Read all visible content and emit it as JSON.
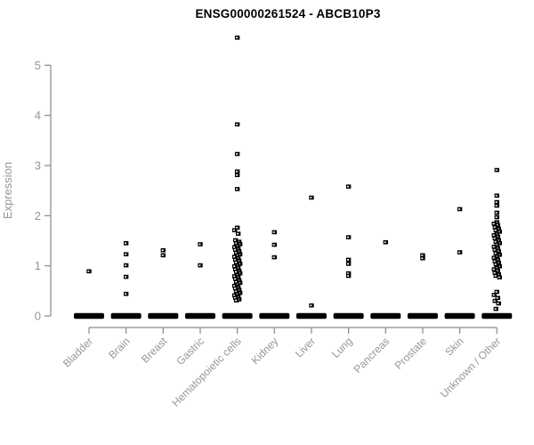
{
  "title": "ENSG00000261524 - ABCB10P3",
  "colors": {
    "background": "#ffffff",
    "title_text": "#000000",
    "axis_line": "#8a8a8a",
    "tick_text": "#969696",
    "point_fill": "#000000",
    "point_hole": "#ffffff"
  },
  "chart_data": {
    "type": "scatter",
    "subtype": "strip-plot",
    "title": "ENSG00000261524 - ABCB10P3",
    "xlabel": "",
    "ylabel": "Expression",
    "ylim": [
      0,
      5.6
    ],
    "yticks": [
      0,
      1,
      2,
      3,
      4,
      5
    ],
    "grid": false,
    "legend_position": "none",
    "categories": [
      "Bladder",
      "Brain",
      "Breast",
      "Gastric",
      "Hematopoietic cells",
      "Kidney",
      "Liver",
      "Lung",
      "Pancreas",
      "Prostate",
      "Skin",
      "Unknown / Other"
    ],
    "series": [
      {
        "category": "Bladder",
        "zero_cluster": true,
        "points": [
          0.89
        ]
      },
      {
        "category": "Brain",
        "zero_cluster": true,
        "points": [
          1.45,
          1.23,
          1.01,
          0.78,
          0.44
        ]
      },
      {
        "category": "Breast",
        "zero_cluster": true,
        "points": [
          1.31,
          1.21
        ]
      },
      {
        "category": "Gastric",
        "zero_cluster": true,
        "points": [
          1.43,
          1.01
        ]
      },
      {
        "category": "Hematopoietic cells",
        "zero_cluster": true,
        "points": [
          5.55,
          3.82,
          3.23,
          2.88,
          2.81,
          2.53,
          1.76,
          1.71,
          1.64,
          1.51,
          1.48,
          1.45,
          1.43,
          1.4,
          1.37,
          1.34,
          1.32,
          1.29,
          1.26,
          1.23,
          1.21,
          1.18,
          1.15,
          1.12,
          1.1,
          1.07,
          1.04,
          1.01,
          0.99,
          0.96,
          0.93,
          0.9,
          0.88,
          0.85,
          0.82,
          0.79,
          0.77,
          0.74,
          0.71,
          0.68,
          0.66,
          0.63,
          0.6,
          0.57,
          0.55,
          0.52,
          0.49,
          0.46,
          0.44,
          0.41,
          0.38,
          0.36,
          0.33,
          0.31
        ]
      },
      {
        "category": "Kidney",
        "zero_cluster": true,
        "points": [
          1.67,
          1.42,
          1.17
        ]
      },
      {
        "category": "Liver",
        "zero_cluster": true,
        "points": [
          2.36,
          0.21
        ]
      },
      {
        "category": "Lung",
        "zero_cluster": true,
        "points": [
          2.58,
          1.57,
          1.12,
          1.04,
          0.85,
          0.8
        ]
      },
      {
        "category": "Pancreas",
        "zero_cluster": true,
        "points": [
          1.47
        ]
      },
      {
        "category": "Prostate",
        "zero_cluster": true,
        "points": [
          1.21,
          1.15
        ]
      },
      {
        "category": "Skin",
        "zero_cluster": true,
        "points": [
          2.13,
          1.27
        ]
      },
      {
        "category": "Unknown / Other",
        "zero_cluster": true,
        "points": [
          2.91,
          2.4,
          2.27,
          2.2,
          2.06,
          1.97,
          1.87,
          1.84,
          1.81,
          1.77,
          1.74,
          1.71,
          1.68,
          1.64,
          1.61,
          1.58,
          1.55,
          1.51,
          1.48,
          1.45,
          1.42,
          1.38,
          1.35,
          1.32,
          1.29,
          1.25,
          1.22,
          1.19,
          1.16,
          1.12,
          1.09,
          1.06,
          1.03,
          0.99,
          0.96,
          0.93,
          0.9,
          0.86,
          0.83,
          0.8,
          0.77,
          0.48,
          0.42,
          0.36,
          0.3,
          0.25,
          0.14
        ]
      }
    ]
  }
}
